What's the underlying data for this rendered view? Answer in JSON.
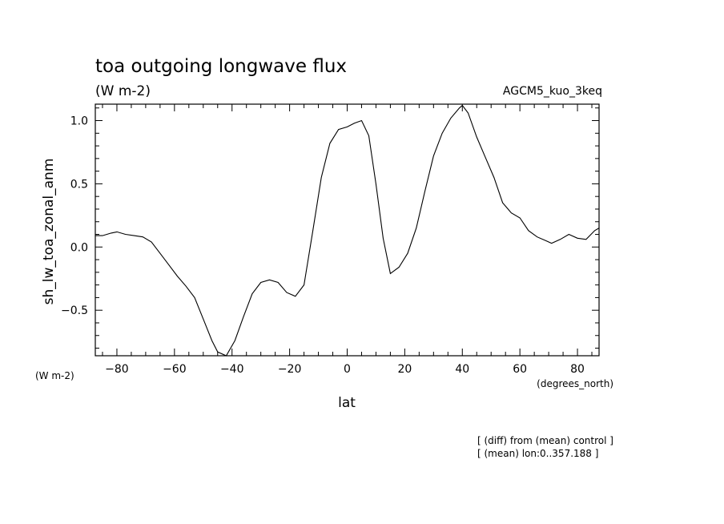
{
  "chart_data": {
    "type": "line",
    "title": "toa outgoing longwave flux",
    "subtitle": "(W m-2)",
    "model_label": "AGCM5_kuo_3keq",
    "ylabel": "sh_lw_toa_zonal_anm",
    "y_units": "(W m-2)",
    "xlabel": "lat",
    "x_units": "(degrees_north)",
    "xlim": [
      -87.5,
      87.5
    ],
    "ylim": [
      -0.86,
      1.13
    ],
    "xticks": [
      -80,
      -60,
      -40,
      -20,
      0,
      20,
      40,
      60,
      80
    ],
    "xtick_labels": [
      "−80",
      "−60",
      "−40",
      "−20",
      "0",
      "20",
      "40",
      "60",
      "80"
    ],
    "yticks": [
      -0.5,
      0.0,
      0.5,
      1.0
    ],
    "ytick_labels": [
      "−0.5",
      "0.0",
      "0.5",
      "1.0"
    ],
    "grid": false,
    "notes": [
      "[ (diff) from (mean) control ]",
      "[ (mean) lon:0..357.188 ]"
    ],
    "series": [
      {
        "x": [
          -87.5,
          -85,
          -82,
          -80,
          -77,
          -74,
          -71,
          -68,
          -65,
          -62,
          -59,
          -56,
          -53,
          -50,
          -47,
          -45,
          -42,
          -39,
          -36,
          -33,
          -30,
          -27,
          -24,
          -21,
          -18,
          -15,
          -12,
          -9,
          -6,
          -3,
          0,
          2.5,
          5,
          7.5,
          10,
          12.5,
          15,
          18,
          21,
          24,
          27,
          30,
          33,
          36,
          39,
          40,
          42,
          45,
          48,
          51,
          54,
          57,
          60,
          63,
          66,
          69,
          71,
          74,
          77,
          80,
          83,
          86,
          87.5
        ],
        "y": [
          0.09,
          0.09,
          0.11,
          0.12,
          0.1,
          0.09,
          0.08,
          0.04,
          -0.05,
          -0.14,
          -0.23,
          -0.31,
          -0.4,
          -0.57,
          -0.74,
          -0.83,
          -0.86,
          -0.74,
          -0.55,
          -0.37,
          -0.28,
          -0.26,
          -0.28,
          -0.36,
          -0.39,
          -0.3,
          0.12,
          0.55,
          0.82,
          0.93,
          0.95,
          0.98,
          1.0,
          0.88,
          0.5,
          0.07,
          -0.21,
          -0.16,
          -0.05,
          0.15,
          0.44,
          0.72,
          0.9,
          1.02,
          1.1,
          1.12,
          1.06,
          0.87,
          0.71,
          0.55,
          0.35,
          0.27,
          0.23,
          0.13,
          0.08,
          0.05,
          0.03,
          0.06,
          0.1,
          0.07,
          0.06,
          0.13,
          0.15
        ]
      }
    ]
  }
}
